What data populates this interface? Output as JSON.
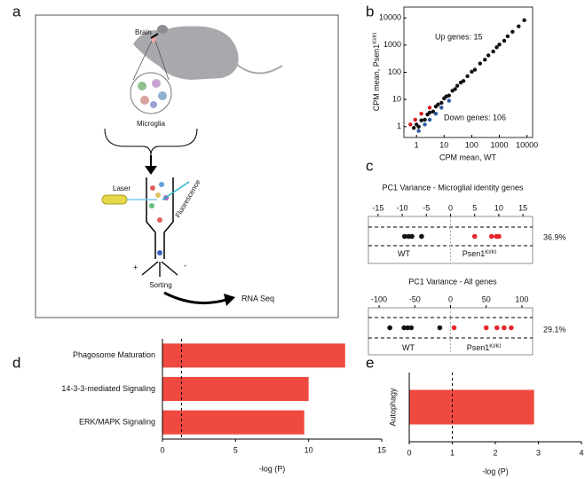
{
  "panel_labels": [
    "a",
    "b",
    "c",
    "d",
    "e"
  ],
  "diagram": {
    "brain": "Brain",
    "microglia": "Microglia",
    "laser": "Laser",
    "fluorescence": "Fluorescence",
    "plus": "+",
    "minus": "-",
    "sorting": "Sorting",
    "output": "RNA Seq"
  },
  "chart_data": [
    {
      "type": "scatter",
      "xscale": "log",
      "yscale": "log",
      "x_label": "CPM mean, WT",
      "y_label": "CPM mean, Psen1",
      "y_label_sup": "KI/KI",
      "annotations": [
        "Up genes: 15",
        "Down genes: 106"
      ],
      "xlim": [
        0.35,
        16000
      ],
      "ylim": [
        0.4,
        25000
      ],
      "xticks": [
        1,
        10,
        100,
        1000,
        10000
      ],
      "yticks": [
        1,
        10,
        100,
        1000,
        10000
      ],
      "series": [
        {
          "color": "#111111",
          "x": [
            0.8,
            1,
            1.2,
            1.5,
            2,
            2.5,
            3,
            4,
            5,
            6,
            8,
            10,
            12,
            15,
            20,
            25,
            30,
            40,
            50,
            70,
            100,
            130,
            200,
            300,
            400,
            600,
            800,
            1000,
            1500,
            2000,
            3000,
            5000,
            8000
          ],
          "y": [
            0.9,
            1.2,
            1,
            1.7,
            1.8,
            2.8,
            3.3,
            3.6,
            5.5,
            6.5,
            7.5,
            11,
            13,
            14,
            21,
            24,
            32,
            42,
            48,
            72,
            105,
            125,
            210,
            290,
            420,
            580,
            830,
            1050,
            1450,
            2100,
            3100,
            4900,
            8200
          ]
        },
        {
          "color": "#d7191c",
          "x": [
            0.6,
            0.9,
            1.5,
            3
          ],
          "y": [
            1.2,
            1.8,
            3,
            5
          ]
        },
        {
          "color": "#2c5aa0",
          "x": [
            1.2,
            2,
            3,
            5,
            8,
            15
          ],
          "y": [
            0.7,
            1.2,
            1.8,
            3,
            5,
            9
          ]
        }
      ]
    },
    {
      "type": "strip",
      "title": "PC1 Variance - Microglial identity genes",
      "variance_label": "36.9%",
      "xlim": [
        -17,
        17
      ],
      "xticks": [
        -15,
        -10,
        -5,
        0,
        5,
        10,
        15
      ],
      "series": [
        {
          "name": "WT",
          "color": "#111111",
          "values": [
            -9.5,
            -8.7,
            -8,
            -6
          ]
        },
        {
          "name": "Psen1",
          "name_sup": "KI/KI",
          "color": "#e8262b",
          "values": [
            5,
            8.5,
            9.5,
            10
          ]
        }
      ]
    },
    {
      "type": "strip",
      "title": "PC1 Variance - All genes",
      "variance_label": "29.1%",
      "xlim": [
        -115,
        115
      ],
      "xticks": [
        -100,
        -50,
        0,
        50,
        100
      ],
      "series": [
        {
          "name": "WT",
          "color": "#111111",
          "values": [
            -85,
            -65,
            -60,
            -55,
            -15
          ]
        },
        {
          "name": "Psen1",
          "name_sup": "KI/KI",
          "color": "#e8262b",
          "values": [
            5,
            50,
            65,
            75,
            85
          ]
        }
      ]
    },
    {
      "type": "barh",
      "x_label": "-log (P)",
      "color": "#f04a40",
      "categories": [
        "Phagosome Maturation",
        "14-3-3-mediated Signaling",
        "ERK/MAPK Signaling"
      ],
      "values": [
        12.5,
        10,
        9.7
      ],
      "xlim": [
        0,
        15
      ],
      "xticks": [
        0,
        5,
        10,
        15
      ],
      "threshold": 1.3
    },
    {
      "type": "barh",
      "x_label": "-log (P)",
      "color": "#f04a40",
      "categories": [
        "Autophagy"
      ],
      "values": [
        2.9
      ],
      "xlim": [
        0,
        4
      ],
      "xticks": [
        0,
        1,
        2,
        3,
        4
      ],
      "threshold": 1
    }
  ]
}
